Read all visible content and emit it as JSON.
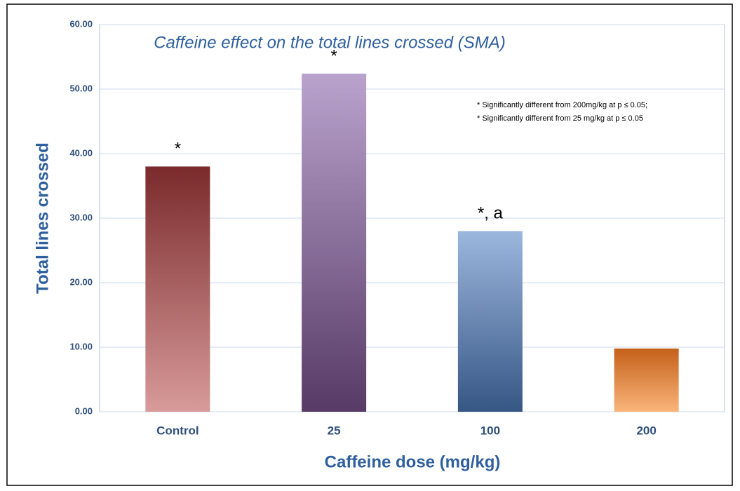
{
  "chart_data": {
    "type": "bar",
    "title": "Caffeine effect on the total lines crossed (SMA)",
    "x_label": "Caffeine dose (mg/kg)",
    "y_label": "Total lines crossed",
    "categories": [
      "Control",
      "25",
      "100",
      "200"
    ],
    "values": [
      38,
      52.4,
      28,
      9.8
    ],
    "colors": [
      [
        "#7a2a2b",
        "#d89a9a"
      ],
      [
        "#b9a3cd",
        "#573a66"
      ],
      [
        "#9cb7de",
        "#365684"
      ],
      [
        "#c4601a",
        "#fab57a"
      ]
    ],
    "annotations": [
      {
        "category": "Control",
        "text": "*"
      },
      {
        "category": "25",
        "text": "*"
      },
      {
        "category": "100",
        "text": "*, a"
      }
    ],
    "note": [
      "* Significantly different from 200mg/kg at p ≤ 0.05;",
      "* Significantly different from 25 mg/kg at p ≤ 0.05"
    ],
    "ylim": [
      0,
      60
    ],
    "yticks": [
      {
        "value": 0,
        "label": "0.00"
      },
      {
        "value": 10,
        "label": "10.00"
      },
      {
        "value": 20,
        "label": "20.00"
      },
      {
        "value": 30,
        "label": "30.00"
      },
      {
        "value": 40,
        "label": "40.00"
      },
      {
        "value": 50,
        "label": "50.00"
      },
      {
        "value": 60,
        "label": "60.00"
      }
    ],
    "grid": true
  }
}
